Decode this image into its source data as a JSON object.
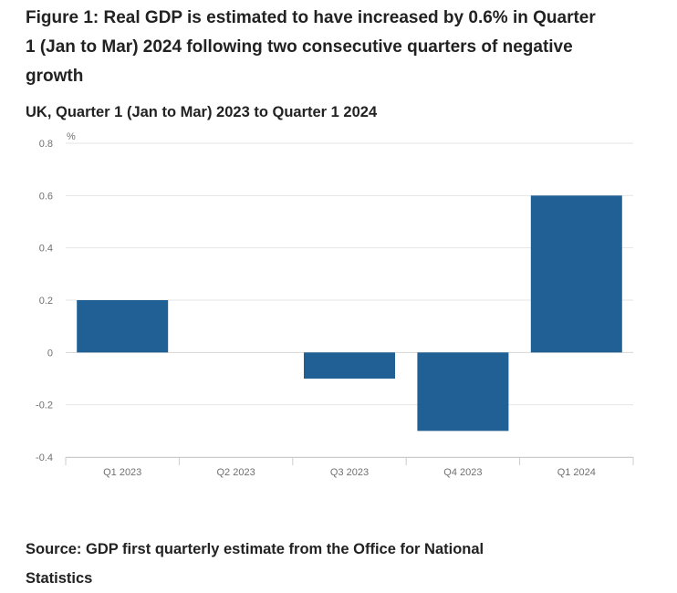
{
  "figure": {
    "title": "Figure 1: Real GDP is estimated to have increased by 0.6% in Quarter 1 (Jan to Mar) 2024 following two consecutive quarters of negative growth",
    "subtitle": "UK, Quarter 1 (Jan to Mar) 2023 to Quarter 1 2024",
    "source": "Source: GDP first quarterly estimate from the Office for National Statistics"
  },
  "chart_data": {
    "type": "bar",
    "title": "Figure 1: Real GDP is estimated to have increased by 0.6% in Quarter 1 (Jan to Mar) 2024 following two consecutive quarters of negative growth",
    "subtitle": "UK, Quarter 1 (Jan to Mar) 2023 to Quarter 1 2024",
    "unit_label": "%",
    "xlabel": "",
    "ylabel": "%",
    "categories": [
      "Q1 2023",
      "Q2 2023",
      "Q3 2023",
      "Q4 2023",
      "Q1 2024"
    ],
    "values": [
      0.2,
      0.0,
      -0.1,
      -0.3,
      0.6
    ],
    "ylim": [
      -0.4,
      0.8
    ],
    "yticks": [
      0.8,
      0.6,
      0.4,
      0.2,
      0,
      -0.2,
      -0.4
    ],
    "ytick_labels": [
      "0.8",
      "0.6",
      "0.4",
      "0.2",
      "0",
      "-0.2",
      "-0.4"
    ],
    "grid": true,
    "bar_color": "#206095",
    "gridline_color": "#e6e6e6",
    "axis_color": "#cccccc"
  }
}
